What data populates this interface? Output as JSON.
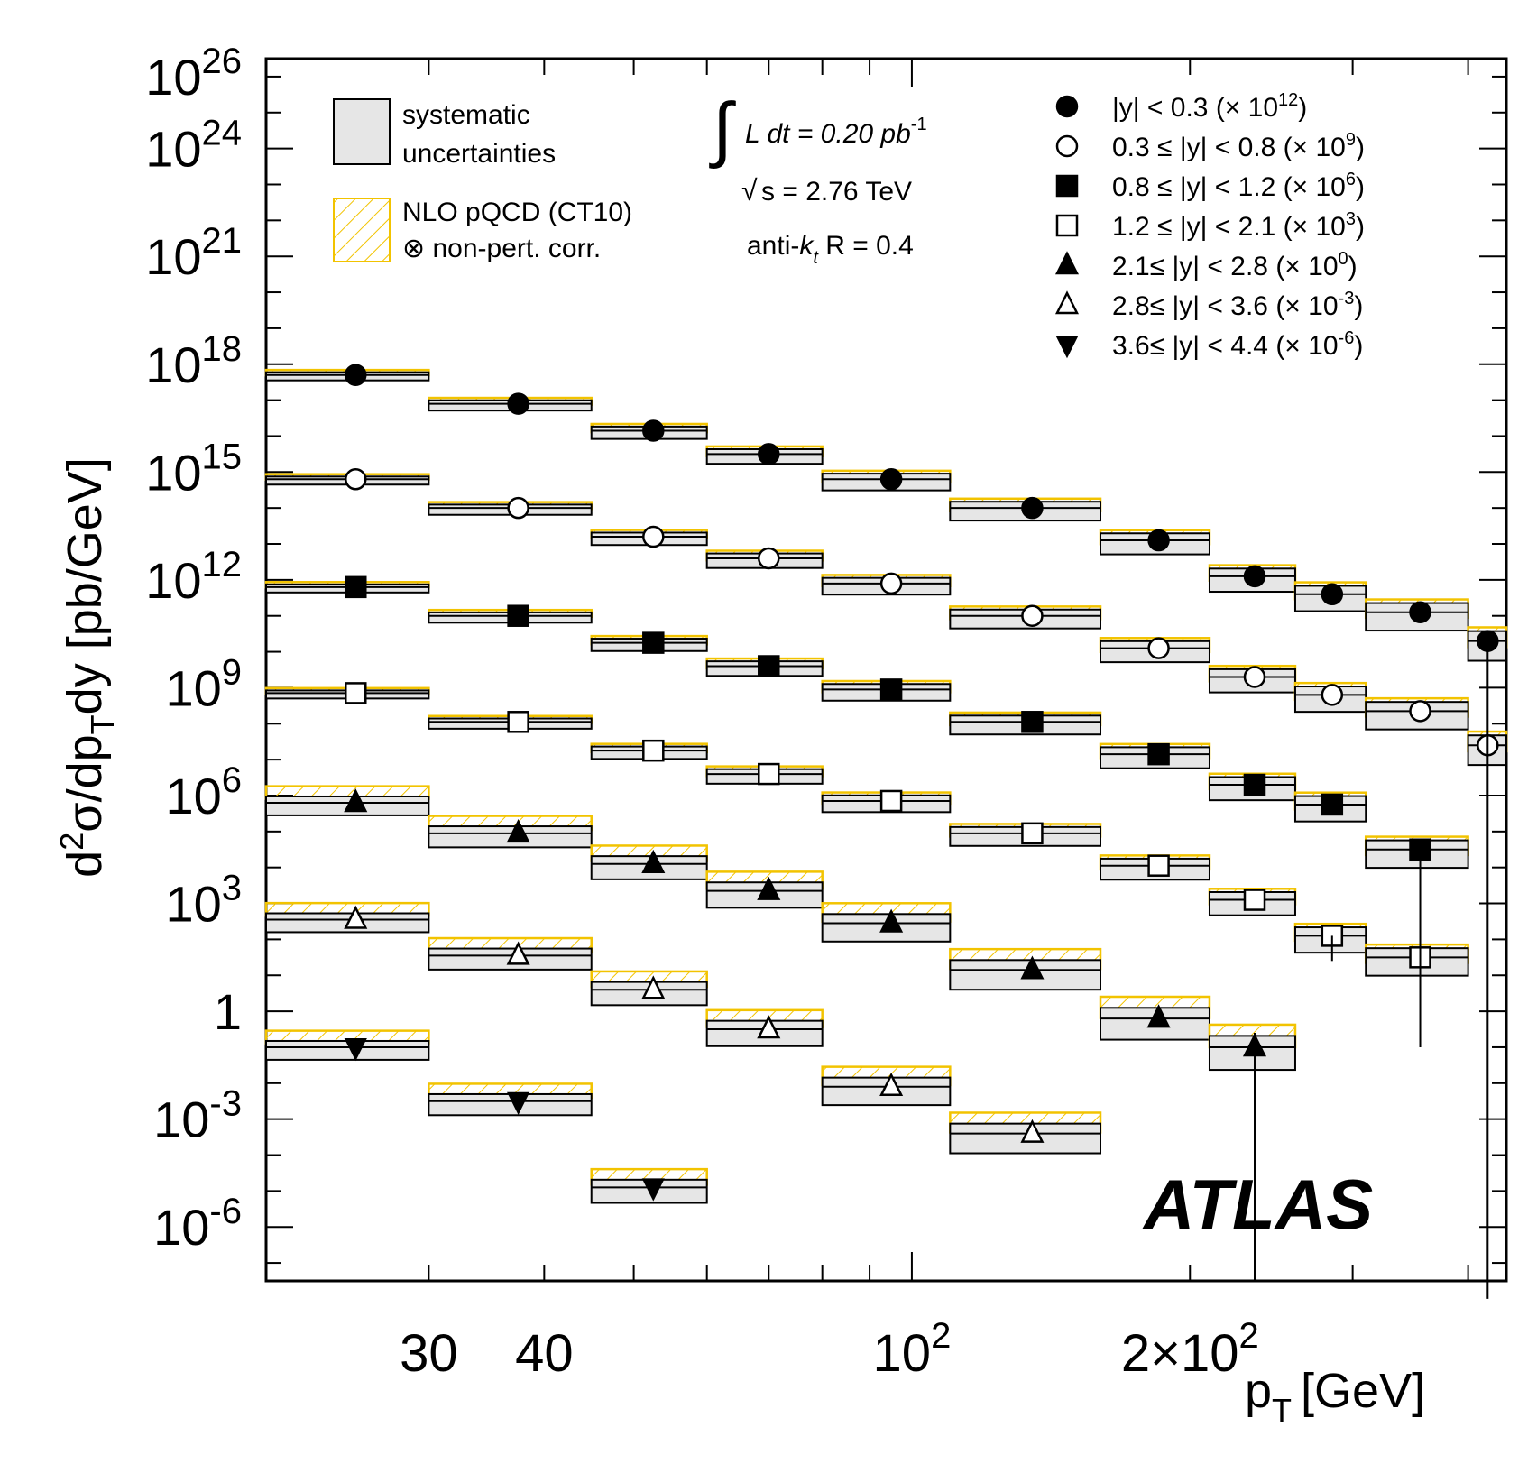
{
  "chart_data": {
    "type": "scatter",
    "title": "",
    "xlabel": "p",
    "xlabel_sub": "T",
    "xlabel_unit": "[GeV]",
    "ylabel_parts": [
      "d",
      "2",
      "σ/dp",
      "T",
      "dy [pb/GeV]"
    ],
    "x_scale": "log",
    "y_scale": "log",
    "xlim": [
      20,
      440
    ],
    "ylim_log10": [
      -7.5,
      26.5
    ],
    "x_tick_labels": [
      {
        "x": 30,
        "text": "30"
      },
      {
        "x": 40,
        "text": "40"
      },
      {
        "x": 100,
        "text": "10",
        "sup": "2"
      },
      {
        "x": 200,
        "text": "2×10",
        "sup": "2"
      }
    ],
    "y_tick_labels": [
      {
        "exp": 26,
        "base": "10",
        "sup": "26"
      },
      {
        "exp": 24,
        "base": "10",
        "sup": "24"
      },
      {
        "exp": 21,
        "base": "10",
        "sup": "21"
      },
      {
        "exp": 18,
        "base": "10",
        "sup": "18"
      },
      {
        "exp": 15,
        "base": "10",
        "sup": "15"
      },
      {
        "exp": 12,
        "base": "10",
        "sup": "12"
      },
      {
        "exp": 9,
        "base": "10",
        "sup": "9"
      },
      {
        "exp": 6,
        "base": "10",
        "sup": "6"
      },
      {
        "exp": 3,
        "base": "10",
        "sup": "3"
      },
      {
        "exp": 0,
        "base": "1",
        "sup": ""
      },
      {
        "exp": -3,
        "base": "10",
        "sup": "-3"
      },
      {
        "exp": -6,
        "base": "10",
        "sup": "-6"
      }
    ],
    "bin_edges": [
      20,
      30,
      45,
      60,
      80,
      110,
      160,
      210,
      260,
      310,
      400,
      440
    ],
    "legend_left": [
      {
        "label1": "systematic",
        "label2": "uncertainties",
        "style": "band"
      },
      {
        "label1": "NLO pQCD (CT10)",
        "label2": "⊗ non-pert. corr.",
        "style": "hatch"
      }
    ],
    "annotation": {
      "lumi": "L dt = 0.20 pb",
      "lumi_sup": "-1",
      "energy": "s = 2.76 TeV",
      "algo_prefix": "anti-",
      "algo_k": "k",
      "algo_sub": "t",
      "algo_suffix": " R = 0.4"
    },
    "series": [
      {
        "name": "|y| < 0.3 (× 10",
        "scale_sup": "12",
        "marker": "circle-filled",
        "log10_values": [
          17.7,
          16.9,
          16.15,
          15.5,
          14.8,
          14.0,
          13.1,
          12.1,
          11.6,
          11.1,
          10.3
        ],
        "x": [
          25,
          37.5,
          52.5,
          70,
          95,
          135,
          185,
          235,
          285,
          355,
          420
        ]
      },
      {
        "name": "0.3 ≤ |y| < 0.8 (× 10",
        "scale_sup": "9",
        "marker": "circle-open",
        "log10_values": [
          14.8,
          14.0,
          13.2,
          12.6,
          11.9,
          11.0,
          10.1,
          9.3,
          8.8,
          8.35,
          7.4
        ],
        "x": [
          25,
          37.5,
          52.5,
          70,
          95,
          135,
          185,
          235,
          285,
          355,
          420
        ]
      },
      {
        "name": "0.8 ≤ |y| < 1.2 (× 10",
        "scale_sup": "6",
        "marker": "square-filled",
        "log10_values": [
          11.8,
          11.0,
          10.25,
          9.6,
          8.95,
          8.05,
          7.15,
          6.3,
          5.75,
          4.5
        ],
        "x": [
          25,
          37.5,
          52.5,
          70,
          95,
          135,
          185,
          235,
          285,
          355
        ]
      },
      {
        "name": "1.2 ≤ |y| < 2.1 (× 10",
        "scale_sup": "3",
        "marker": "square-open",
        "log10_values": [
          8.85,
          8.05,
          7.25,
          6.6,
          5.85,
          4.95,
          4.05,
          3.1,
          2.1,
          1.5
        ],
        "x": [
          25,
          37.5,
          52.5,
          70,
          95,
          135,
          185,
          235,
          285,
          355
        ]
      },
      {
        "name": "2.1≤ |y| < 2.8 (× 10",
        "scale_sup": "0",
        "marker": "triangle-filled",
        "log10_values": [
          5.8,
          4.95,
          4.1,
          3.35,
          2.45,
          1.15,
          -0.2,
          -1.0
        ],
        "x": [
          25,
          37.5,
          52.5,
          70,
          95,
          135,
          185,
          235
        ]
      },
      {
        "name": "2.8≤ |y| < 3.6 (× 10",
        "scale_sup": "-3",
        "marker": "triangle-open",
        "log10_values": [
          2.55,
          1.55,
          0.6,
          -0.5,
          -2.1,
          -3.4
        ],
        "x": [
          25,
          37.5,
          52.5,
          70,
          95,
          135
        ]
      },
      {
        "name": "3.6≤ |y| < 4.4 (× 10",
        "scale_sup": "-6",
        "marker": "triangle-down-filled",
        "log10_values": [
          -1.0,
          -2.5,
          -4.9
        ],
        "x": [
          25,
          37.5,
          52.5
        ]
      }
    ],
    "brand": "ATLAS",
    "colors": {
      "nlo_band": "#f2c300",
      "syst_fill": "#e6e6e6",
      "marker": "#000000"
    }
  }
}
